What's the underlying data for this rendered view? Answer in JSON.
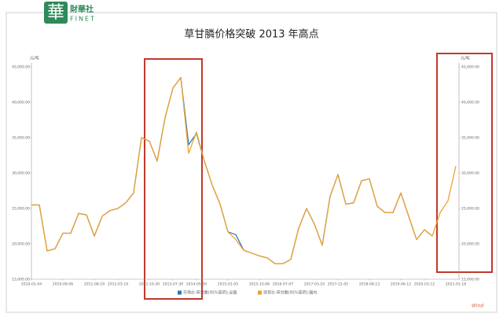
{
  "logo": {
    "mark": "華",
    "name": "財華社",
    "en": "FINET"
  },
  "source": "Wind",
  "chart_data": {
    "type": "line",
    "title": "草甘膦价格突破 2013 年高点",
    "y_unit": "元/吨",
    "y2_unit": "元/吨",
    "categories": [
      "2010-01-04",
      null,
      null,
      null,
      "2010-08-06",
      null,
      null,
      null,
      "2011-08-19",
      null,
      null,
      "2012-03-19",
      null,
      null,
      null,
      "2012-10-30",
      null,
      null,
      "2013-07-30",
      null,
      null,
      "2014-05-30",
      null,
      null,
      null,
      "2015-01-05",
      null,
      null,
      null,
      "2015-10-06",
      null,
      null,
      "2016-07-07",
      null,
      null,
      null,
      "2017-03-10",
      null,
      null,
      "2017-12-05",
      null,
      null,
      null,
      "2018-08-13",
      null,
      null,
      null,
      "2019-06-12",
      null,
      null,
      "2020-03-12",
      null,
      null,
      null,
      "2021-01-18"
    ],
    "series": [
      {
        "name": "市场价:草甘膦(95%原药):全国",
        "color": "#2e78b7",
        "values": [
          25500,
          25500,
          19000,
          19300,
          21500,
          21500,
          24300,
          24100,
          21100,
          23900,
          24700,
          25000,
          25800,
          27200,
          35000,
          34500,
          31700,
          37800,
          42000,
          43500,
          34000,
          35600,
          31700,
          28300,
          25600,
          21700,
          21300,
          19100,
          18700,
          18300,
          18000,
          17200,
          17200,
          17800,
          22200,
          25000,
          22800,
          19800,
          26700,
          29800,
          25600,
          25800,
          28900,
          29200,
          25300,
          24400,
          24400,
          27200,
          23900,
          20600,
          22000,
          21100,
          null,
          null,
          null
        ]
      },
      {
        "name": "现货价:草甘膦(95%原药):国内",
        "color": "#f0a22e",
        "values": [
          25500,
          25500,
          19000,
          19300,
          21500,
          21500,
          24300,
          24100,
          21100,
          23900,
          24700,
          25000,
          25800,
          27200,
          35000,
          34500,
          31700,
          37800,
          42000,
          43500,
          32800,
          35800,
          31700,
          28300,
          25600,
          21700,
          20600,
          19100,
          18700,
          18300,
          18000,
          17200,
          17200,
          17800,
          22200,
          25000,
          22800,
          19800,
          26700,
          29800,
          25600,
          25800,
          28900,
          29200,
          25300,
          24400,
          24400,
          27200,
          23900,
          20600,
          22000,
          21100,
          24400,
          26100,
          31000
        ]
      }
    ],
    "ylim": [
      15000,
      45000
    ],
    "yticks": [
      {
        "value": 15000,
        "label": "15,000.00"
      },
      {
        "value": 20000,
        "label": "20,000.00"
      },
      {
        "value": 25000,
        "label": "25,000.00"
      },
      {
        "value": 30000,
        "label": "30,000.00"
      },
      {
        "value": 35000,
        "label": "35,000.00"
      },
      {
        "value": 40000,
        "label": "40,000.00"
      },
      {
        "value": 45000,
        "label": "45,000.00"
      }
    ],
    "y2lim": [
      15000,
      45000
    ],
    "y2ticks": [
      {
        "value": 15000,
        "label": "15,000.00"
      },
      {
        "value": 20000,
        "label": "20,000.00"
      },
      {
        "value": 25000,
        "label": "25,000.00"
      },
      {
        "value": 30000,
        "label": "30,000.00"
      },
      {
        "value": 35000,
        "label": "35,000.00"
      },
      {
        "value": 40000,
        "label": "40,000.00"
      },
      {
        "value": 45000,
        "label": "45,000.00"
      }
    ],
    "grid": false
  }
}
